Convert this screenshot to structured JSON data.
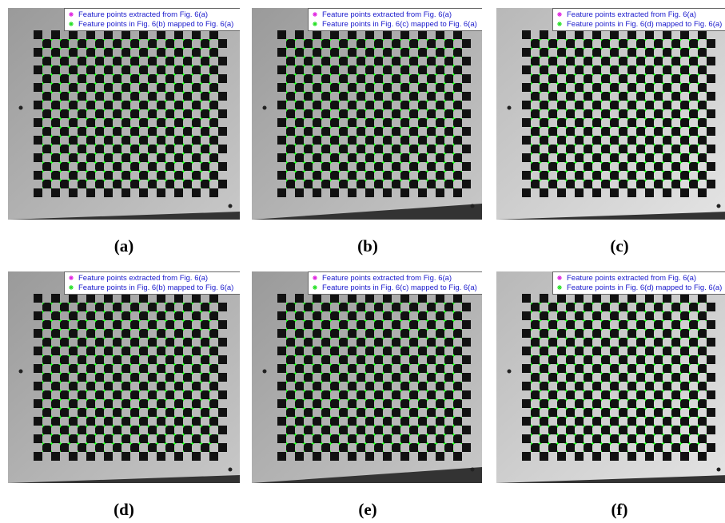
{
  "panels": [
    {
      "label": "(a)",
      "legend": [
        "Feature points extracted from Fig. 6(a)",
        "Feature points in Fig. 6(b) mapped to Fig. 6(a)"
      ]
    },
    {
      "label": "(b)",
      "legend": [
        "Feature points extracted from Fig. 6(a)",
        "Feature points in Fig. 6(c) mapped to Fig. 6(a)"
      ]
    },
    {
      "label": "(c)",
      "legend": [
        "Feature points extracted from Fig. 6(a)",
        "Feature points in Fig. 6(d) mapped to Fig. 6(a)"
      ]
    },
    {
      "label": "(d)",
      "legend": [
        "Feature points extracted from Fig. 6(a)",
        "Feature points in Fig. 6(b) mapped to Fig. 6(a)"
      ]
    },
    {
      "label": "(e)",
      "legend": [
        "Feature points extracted from Fig. 6(a)",
        "Feature points in Fig. 6(c) mapped to Fig. 6(a)"
      ]
    },
    {
      "label": "(f)",
      "legend": [
        "Feature points extracted from Fig. 6(a)",
        "Feature points in Fig. 6(d) mapped to Fig. 6(a)"
      ]
    }
  ]
}
